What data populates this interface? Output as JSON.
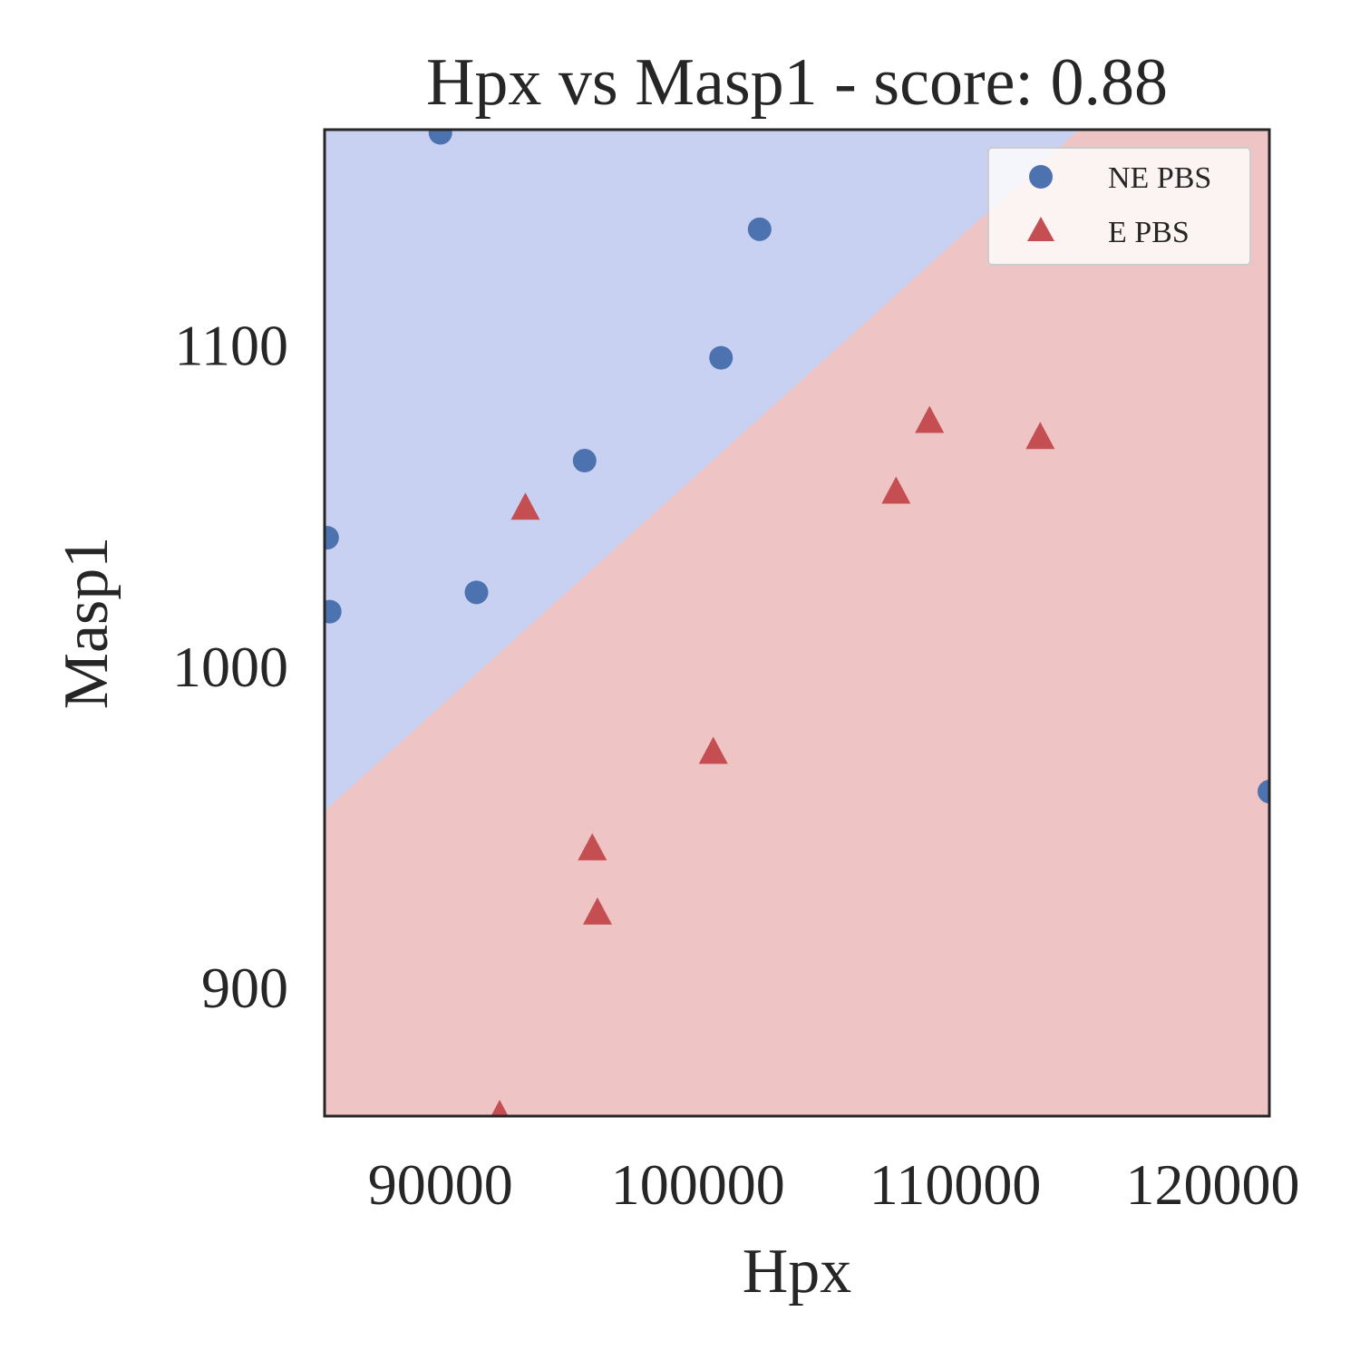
{
  "chart_data": {
    "type": "scatter",
    "title": "Hpx vs Masp1 - score: 0.88",
    "xlabel": "Hpx",
    "ylabel": "Masp1",
    "xlim": [
      85500,
      122200
    ],
    "ylim": [
      860,
      1167
    ],
    "x_ticks": [
      90000,
      100000,
      110000,
      120000
    ],
    "x_tick_labels": [
      "90000",
      "100000",
      "110000",
      "120000"
    ],
    "y_ticks": [
      900,
      1000,
      1100
    ],
    "y_tick_labels": [
      "900",
      "1000",
      "1100"
    ],
    "grid": false,
    "legend_position": "top-right",
    "decision_boundary": {
      "points": [
        [
          85500,
          955
        ],
        [
          114800,
          1167
        ]
      ],
      "upper_region": "NE PBS",
      "lower_region": "E PBS"
    },
    "region_colors": {
      "upper": "#c8d1f1",
      "lower": "#eec5c4"
    },
    "series": [
      {
        "name": "NE PBS",
        "marker": "circle",
        "color": "#4c72b0",
        "points": [
          [
            90000,
            1166
          ],
          [
            85600,
            1040
          ],
          [
            85700,
            1017
          ],
          [
            91400,
            1023
          ],
          [
            95600,
            1064
          ],
          [
            100900,
            1096
          ],
          [
            102400,
            1136
          ],
          [
            122200,
            961
          ]
        ]
      },
      {
        "name": "E PBS",
        "marker": "triangle",
        "color": "#c44e52",
        "points": [
          [
            93300,
            1049
          ],
          [
            95900,
            943
          ],
          [
            96100,
            923
          ],
          [
            100600,
            973
          ],
          [
            107700,
            1054
          ],
          [
            109000,
            1076
          ],
          [
            113300,
            1071
          ],
          [
            92300,
            860
          ]
        ]
      }
    ]
  }
}
